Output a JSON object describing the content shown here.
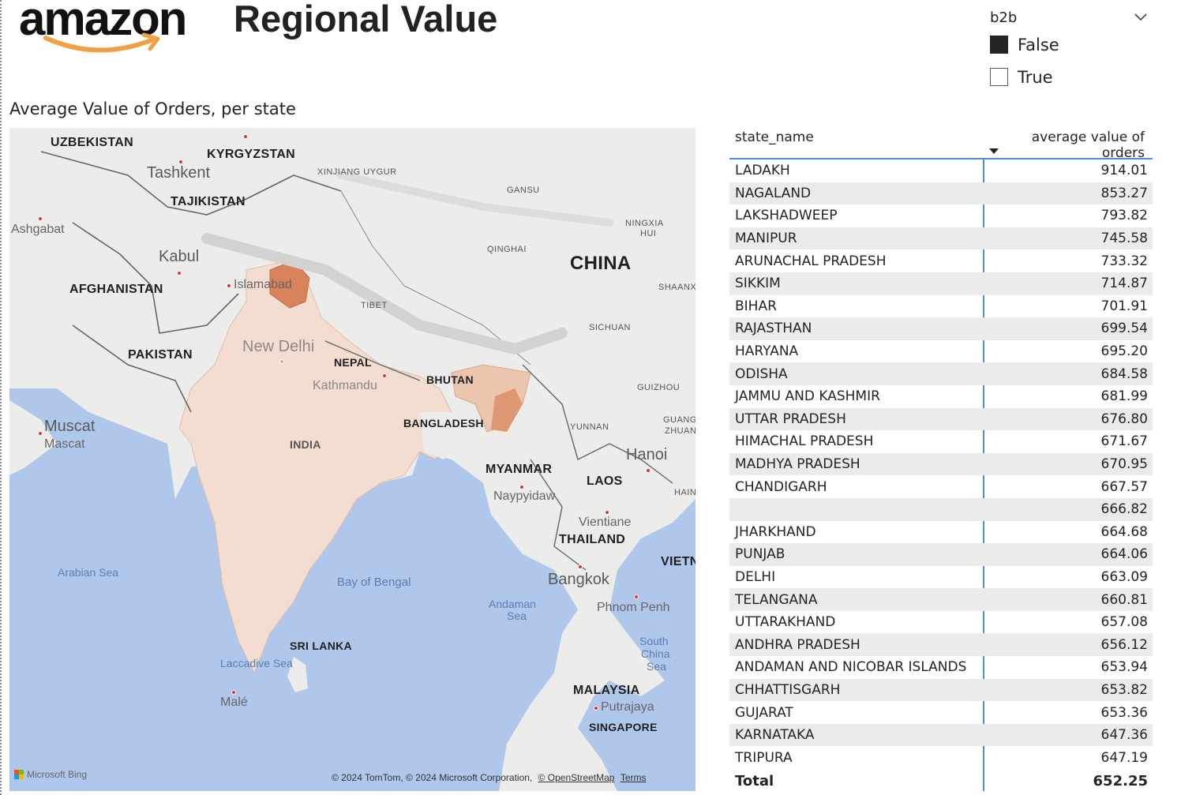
{
  "header": {
    "logo_text": "amazon",
    "title": "Regional Value"
  },
  "slicer": {
    "title": "b2b",
    "items": [
      {
        "label": "False",
        "checked": true
      },
      {
        "label": "True",
        "checked": false
      }
    ]
  },
  "map": {
    "title": "Average Value of Orders, per state",
    "countries": [
      "UZBEKISTAN",
      "KYRGYZSTAN",
      "TAJIKISTAN",
      "AFGHANISTAN",
      "PAKISTAN",
      "CHINA",
      "NEPAL",
      "BHUTAN",
      "BANGLADESH",
      "INDIA",
      "MYANMAR",
      "LAOS",
      "THAILAND",
      "VIETN",
      "SRI LANKA",
      "MALAYSIA",
      "SINGAPORE"
    ],
    "regions": [
      "XINJIANG UYGUR",
      "GANSU",
      "NINGXIA",
      "HUI",
      "QINGHAI",
      "SHAANX",
      "TIBET",
      "SICHUAN",
      "GUIZHOU",
      "GUANG",
      "ZHUAN",
      "YUNNAN",
      "HAIN"
    ],
    "cities": [
      "Tashkent",
      "Ashgabat",
      "Kabul",
      "Islamabad",
      "New Delhi",
      "Kathmandu",
      "Muscat",
      "Mascat",
      "Hanoi",
      "Naypyidaw",
      "Vientiane",
      "Bangkok",
      "Phnom Penh",
      "Putrajaya",
      "Malé"
    ],
    "seas": [
      "Arabian Sea",
      "Bay of Bengal",
      "Andaman",
      "Sea",
      "South",
      "China",
      "Sea",
      "Laccadive Sea"
    ],
    "attribution": "Microsoft Bing",
    "copyright": "© 2024 TomTom, © 2024 Microsoft Corporation,",
    "osm_link": "© OpenStreetMap",
    "terms_link": "Terms",
    "colors": {
      "water": "#aec7ea",
      "land": "#ececea",
      "india_light": "#f3ddd0",
      "highlight": "#d9835c"
    }
  },
  "table": {
    "headers": [
      "state_name",
      "average value of orders"
    ],
    "rows": [
      [
        "LADAKH",
        "914.01"
      ],
      [
        "NAGALAND",
        "853.27"
      ],
      [
        "LAKSHADWEEP",
        "793.82"
      ],
      [
        "MANIPUR",
        "745.58"
      ],
      [
        "ARUNACHAL PRADESH",
        "733.32"
      ],
      [
        "SIKKIM",
        "714.87"
      ],
      [
        "BIHAR",
        "701.91"
      ],
      [
        "RAJASTHAN",
        "699.54"
      ],
      [
        "HARYANA",
        "695.20"
      ],
      [
        "ODISHA",
        "684.58"
      ],
      [
        "JAMMU AND KASHMIR",
        "681.99"
      ],
      [
        "UTTAR PRADESH",
        "676.80"
      ],
      [
        "HIMACHAL PRADESH",
        "671.67"
      ],
      [
        "MADHYA PRADESH",
        "670.95"
      ],
      [
        "CHANDIGARH",
        "667.57"
      ],
      [
        "",
        "666.82"
      ],
      [
        "JHARKHAND",
        "664.68"
      ],
      [
        "PUNJAB",
        "664.06"
      ],
      [
        "DELHI",
        "663.09"
      ],
      [
        "TELANGANA",
        "660.81"
      ],
      [
        "UTTARAKHAND",
        "657.08"
      ],
      [
        "ANDHRA PRADESH",
        "656.12"
      ],
      [
        "ANDAMAN AND NICOBAR ISLANDS",
        "653.94"
      ],
      [
        "CHHATTISGARH",
        "653.82"
      ],
      [
        "GUJARAT",
        "653.36"
      ],
      [
        "KARNATAKA",
        "647.36"
      ],
      [
        "TRIPURA",
        "647.19"
      ]
    ],
    "total_label": "Total",
    "total_value": "652.25"
  }
}
